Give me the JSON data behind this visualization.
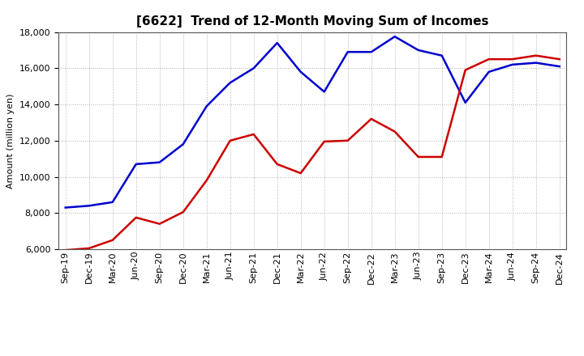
{
  "title": "[6622]  Trend of 12-Month Moving Sum of Incomes",
  "ylabel": "Amount (million yen)",
  "x_labels": [
    "Sep-19",
    "Dec-19",
    "Mar-20",
    "Jun-20",
    "Sep-20",
    "Dec-20",
    "Mar-21",
    "Jun-21",
    "Sep-21",
    "Dec-21",
    "Mar-22",
    "Jun-22",
    "Sep-22",
    "Dec-22",
    "Mar-23",
    "Jun-23",
    "Sep-23",
    "Dec-23",
    "Mar-24",
    "Jun-24",
    "Sep-24",
    "Dec-24"
  ],
  "ordinary_income": [
    8300,
    8400,
    8600,
    10700,
    10800,
    11800,
    13900,
    15200,
    16000,
    17400,
    15800,
    14700,
    16900,
    16900,
    17750,
    17000,
    16700,
    14100,
    15800,
    16200,
    16300,
    16100
  ],
  "net_income": [
    5950,
    6050,
    6500,
    7750,
    7400,
    8050,
    9800,
    12000,
    12350,
    10700,
    10200,
    11950,
    12000,
    13200,
    12500,
    11100,
    11100,
    15900,
    16500,
    16500,
    16700,
    16500
  ],
  "ordinary_color": "#0000cc",
  "net_color": "#cc0000",
  "ylim": [
    6000,
    18000
  ],
  "yticks": [
    6000,
    8000,
    10000,
    12000,
    14000,
    16000,
    18000
  ],
  "background_color": "#ffffff",
  "grid_color": "#999999",
  "title_fontsize": 11,
  "axis_label_fontsize": 8,
  "tick_fontsize": 8,
  "legend_fontsize": 9
}
